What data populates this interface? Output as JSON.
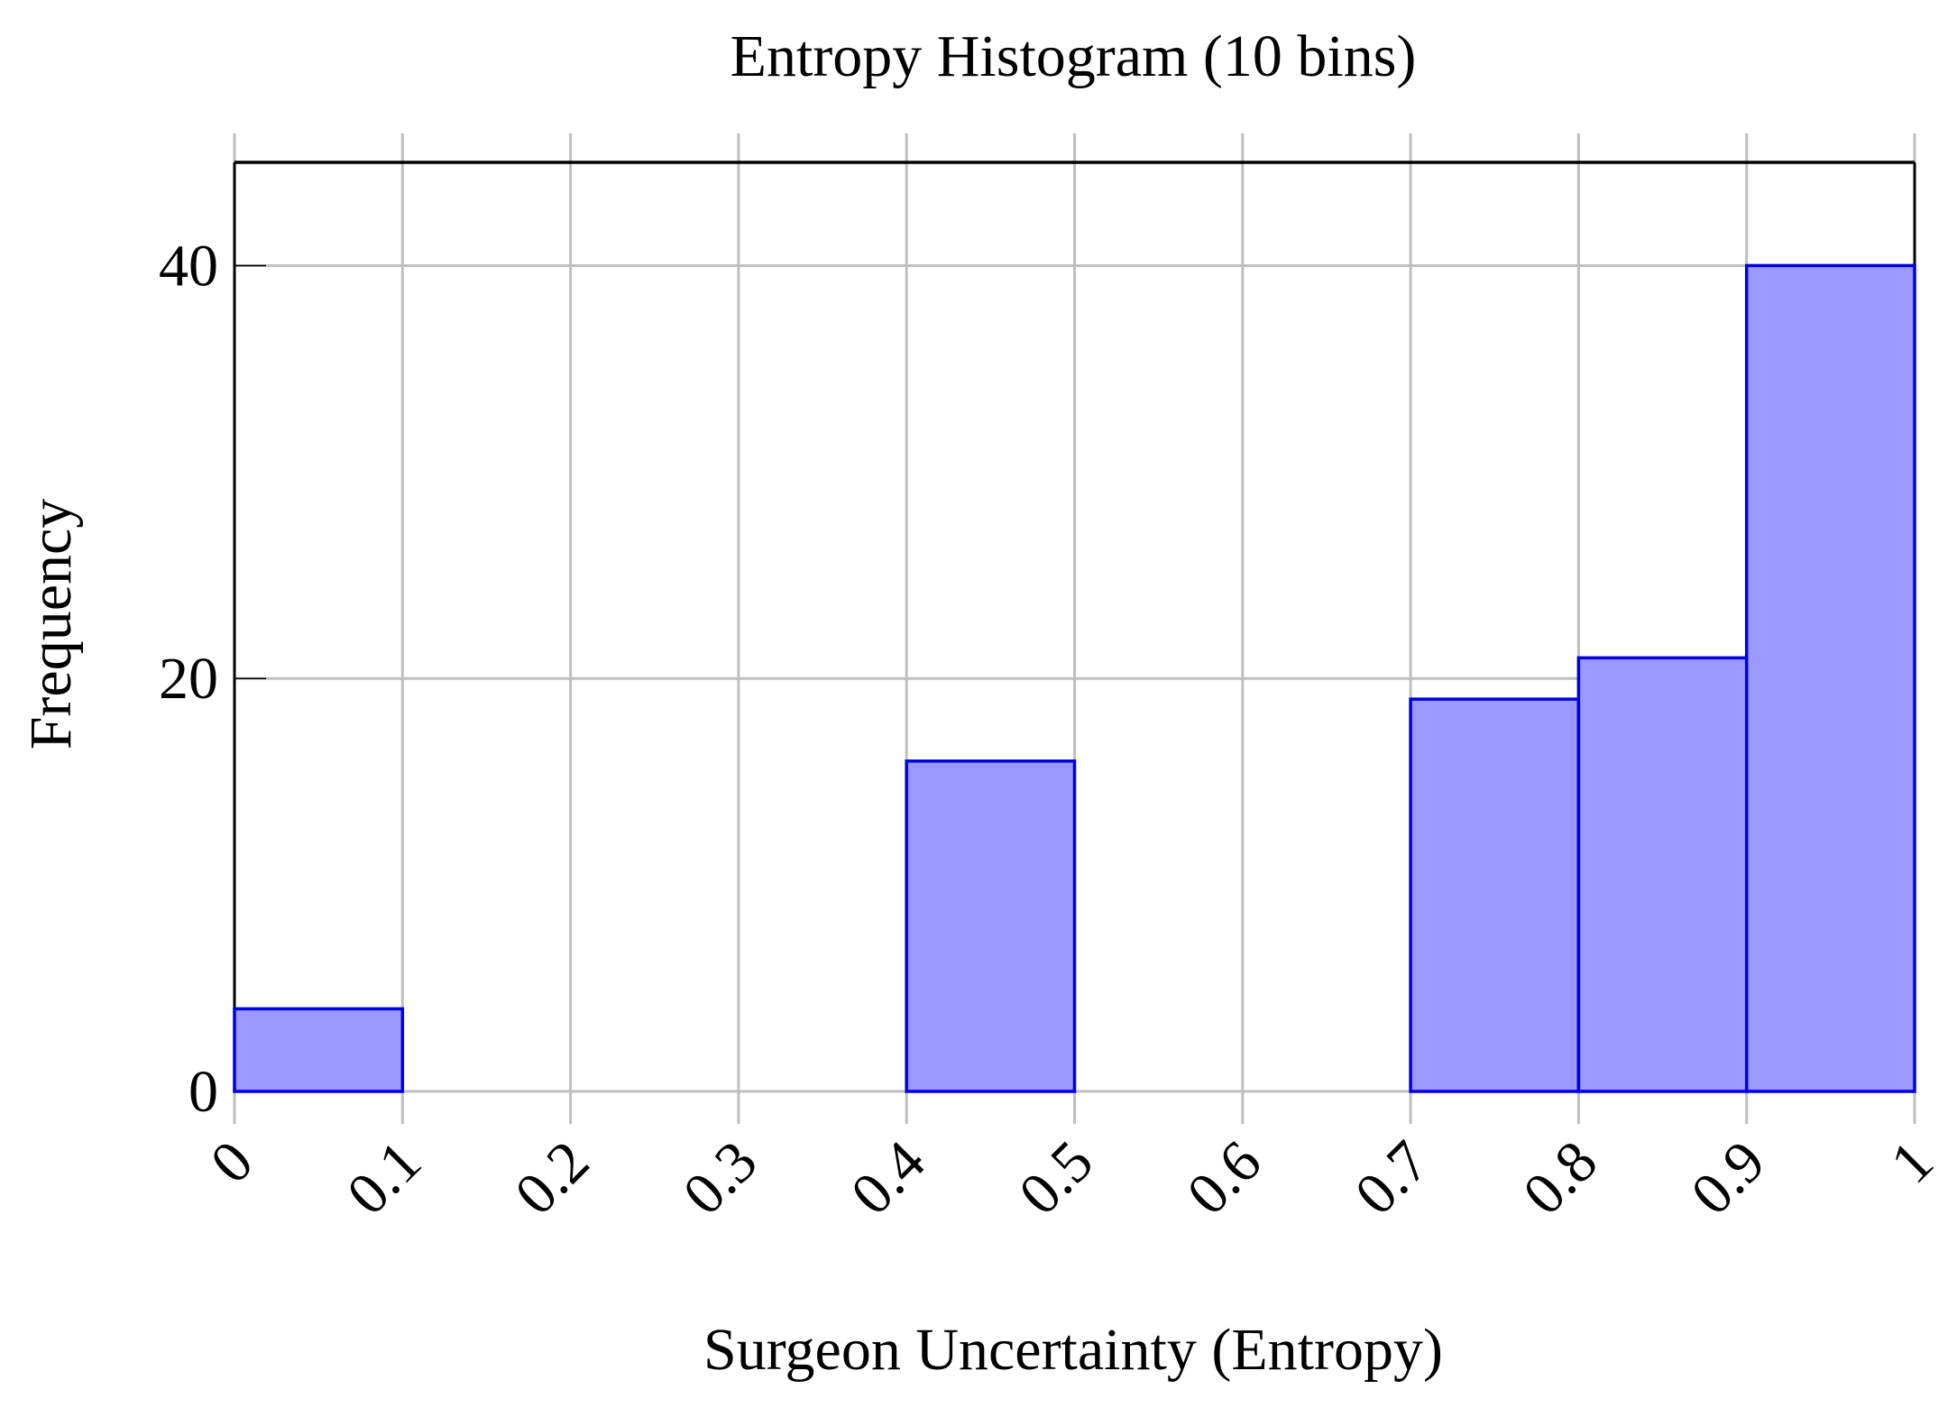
{
  "chart_data": {
    "type": "histogram",
    "title": "Entropy Histogram (10 bins)",
    "x_label": "Surgeon Uncertainty (Entropy)",
    "y_label": "Frequency",
    "bins": [
      0,
      0.1,
      0.2,
      0.3,
      0.4,
      0.5,
      0.6,
      0.7,
      0.8,
      0.9,
      1
    ],
    "values": [
      4,
      0,
      0,
      0,
      16,
      0,
      0,
      19,
      21,
      40
    ],
    "color": "#9999ff",
    "edge_color": "#0000dd",
    "xlim": [
      0,
      1
    ],
    "ylim": [
      0,
      45
    ],
    "xticks": [
      0,
      0.1,
      0.2,
      0.3,
      0.4,
      0.5,
      0.6,
      0.7,
      0.8,
      0.9,
      1
    ],
    "yticks": [
      0,
      20,
      40
    ],
    "grid": true
  }
}
